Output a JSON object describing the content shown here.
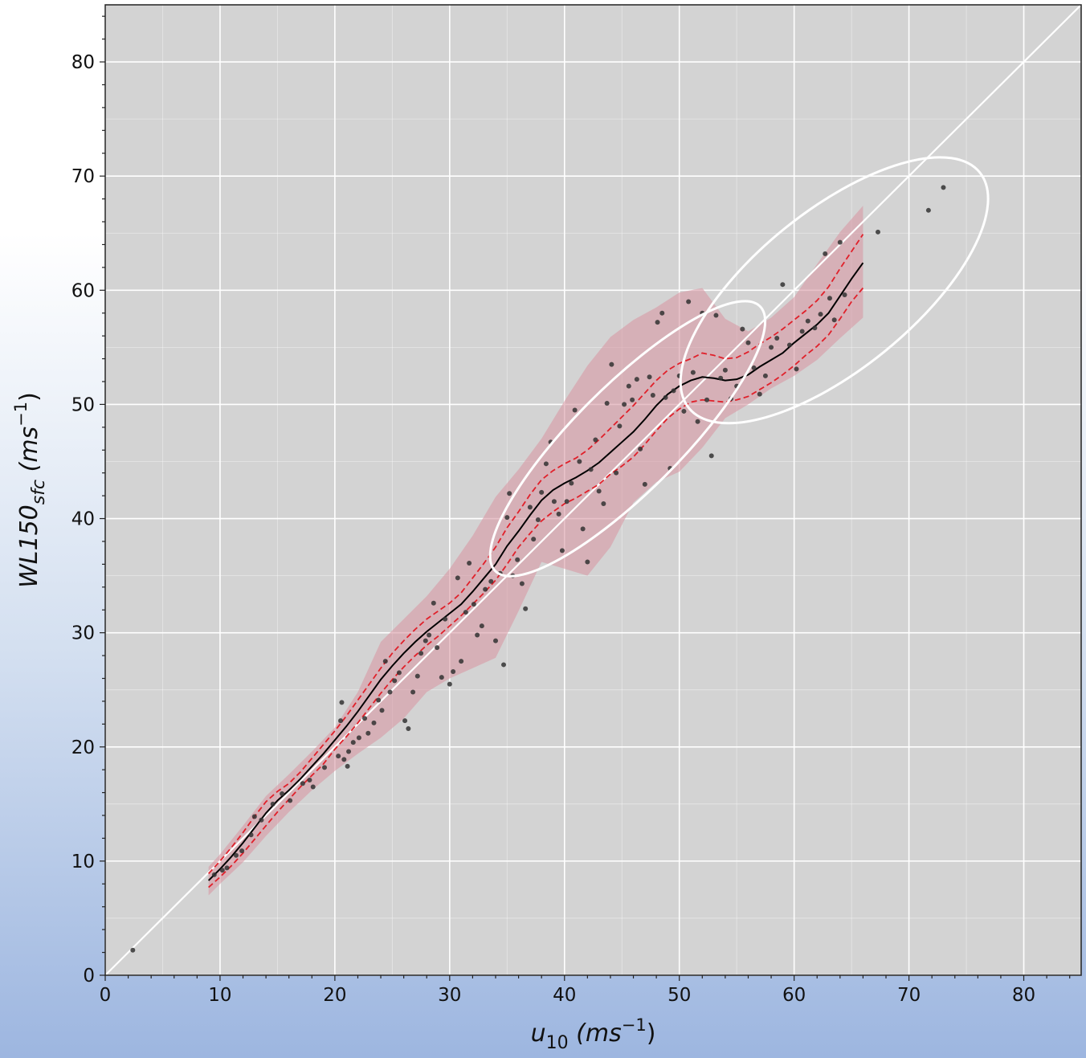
{
  "chart_data": {
    "type": "scatter",
    "title": "",
    "xlabel": {
      "base": "u",
      "sub": "10",
      "unit": "(ms",
      "sup": "−1",
      "close": ")"
    },
    "ylabel": {
      "base": "WL150",
      "sub": "sfc",
      "unit": "(ms",
      "sup": "−1",
      "close": ")"
    },
    "xlim": [
      0,
      85
    ],
    "ylim": [
      0,
      85
    ],
    "xticks": [
      0,
      10,
      20,
      30,
      40,
      50,
      60,
      70,
      80
    ],
    "yticks": [
      0,
      10,
      20,
      30,
      40,
      50,
      60,
      70,
      80
    ],
    "grid": true,
    "colors": {
      "axes_bg": "#d3d3d3",
      "grid": "#ffffff",
      "band": "#d89aa5",
      "ci_line": "#e0202a",
      "median_line": "#000000",
      "points": "#333333",
      "one_to_one": "#ffffff",
      "annotation": "#ffffff"
    },
    "one_to_one_line": [
      [
        0,
        0
      ],
      [
        85,
        85
      ]
    ],
    "series": [
      {
        "kind": "median",
        "x": [
          9,
          10,
          11,
          12,
          13,
          14,
          15,
          16,
          17,
          18,
          19,
          20,
          21,
          22,
          23,
          24,
          25,
          26,
          27,
          28,
          29,
          30,
          31,
          32,
          33,
          34,
          35,
          36,
          37,
          38,
          39,
          40,
          41,
          42,
          43,
          44,
          45,
          46,
          47,
          48,
          49,
          50,
          51,
          52,
          53,
          54,
          55,
          56,
          57,
          58,
          59,
          60,
          61,
          62,
          63,
          64,
          65,
          66
        ],
        "y": [
          8.3,
          9.3,
          10.4,
          11.6,
          12.9,
          14.2,
          15.3,
          16.2,
          17.2,
          18.3,
          19.4,
          20.6,
          21.8,
          23.1,
          24.5,
          25.9,
          27.1,
          28.2,
          29.2,
          30.1,
          30.9,
          31.7,
          32.5,
          33.6,
          34.8,
          36.0,
          37.6,
          38.9,
          40.3,
          41.6,
          42.5,
          43.1,
          43.6,
          44.2,
          44.9,
          45.8,
          46.7,
          47.6,
          48.7,
          49.9,
          50.9,
          51.6,
          52.1,
          52.4,
          52.3,
          52.1,
          52.2,
          52.6,
          53.3,
          53.9,
          54.5,
          55.4,
          56.2,
          57.0,
          58.0,
          59.5,
          61.0,
          62.4
        ]
      },
      {
        "kind": "ci_upper",
        "x": [
          9,
          10,
          11,
          12,
          13,
          14,
          15,
          16,
          17,
          18,
          19,
          20,
          21,
          22,
          23,
          24,
          25,
          26,
          27,
          28,
          29,
          30,
          31,
          32,
          33,
          34,
          35,
          36,
          37,
          38,
          39,
          40,
          41,
          42,
          43,
          44,
          45,
          46,
          47,
          48,
          49,
          50,
          51,
          52,
          53,
          54,
          55,
          56,
          57,
          58,
          59,
          60,
          61,
          62,
          63,
          64,
          65,
          66
        ],
        "y": [
          8.9,
          10.0,
          11.2,
          12.5,
          13.9,
          15.2,
          16.1,
          16.8,
          17.8,
          19.0,
          20.2,
          21.4,
          22.7,
          24.1,
          25.5,
          26.9,
          28.2,
          29.3,
          30.3,
          31.2,
          31.9,
          32.6,
          33.5,
          34.8,
          36.1,
          37.5,
          39.2,
          40.6,
          42.1,
          43.4,
          44.2,
          44.8,
          45.3,
          46.0,
          46.9,
          47.9,
          48.9,
          49.9,
          51.0,
          52.1,
          53.0,
          53.6,
          54.0,
          54.5,
          54.3,
          54.0,
          54.1,
          54.6,
          55.3,
          55.9,
          56.6,
          57.4,
          58.2,
          59.1,
          60.3,
          61.9,
          63.4,
          64.9
        ]
      },
      {
        "kind": "ci_lower",
        "x": [
          9,
          10,
          11,
          12,
          13,
          14,
          15,
          16,
          17,
          18,
          19,
          20,
          21,
          22,
          23,
          24,
          25,
          26,
          27,
          28,
          29,
          30,
          31,
          32,
          33,
          34,
          35,
          36,
          37,
          38,
          39,
          40,
          41,
          42,
          43,
          44,
          45,
          46,
          47,
          48,
          49,
          50,
          51,
          52,
          53,
          54,
          55,
          56,
          57,
          58,
          59,
          60,
          61,
          62,
          63,
          64,
          65,
          66
        ],
        "y": [
          7.7,
          8.6,
          9.6,
          10.7,
          11.9,
          13.1,
          14.3,
          15.4,
          16.5,
          17.5,
          18.5,
          19.8,
          20.9,
          22.1,
          23.4,
          24.7,
          25.9,
          27.0,
          28.0,
          28.9,
          29.7,
          30.6,
          31.5,
          32.5,
          33.5,
          34.6,
          36.0,
          37.5,
          38.7,
          39.8,
          40.6,
          41.3,
          41.8,
          42.4,
          43.0,
          43.9,
          44.6,
          45.4,
          46.5,
          47.7,
          48.8,
          49.6,
          50.2,
          50.4,
          50.3,
          50.2,
          50.4,
          50.7,
          51.3,
          51.9,
          52.6,
          53.4,
          54.3,
          55.1,
          56.1,
          57.5,
          59.0,
          60.2
        ]
      },
      {
        "kind": "band_upper",
        "x": [
          9,
          10,
          12,
          14,
          16,
          18,
          20,
          22,
          24,
          26,
          28,
          30,
          32,
          34,
          36,
          38,
          40,
          42,
          44,
          46,
          48,
          50,
          52,
          54,
          56,
          58,
          60,
          62,
          64,
          66
        ],
        "y": [
          9.5,
          10.6,
          13.1,
          15.7,
          17.6,
          19.6,
          21.7,
          24.8,
          29.2,
          31.2,
          33.2,
          35.6,
          38.5,
          41.9,
          44.3,
          47.0,
          50.3,
          53.4,
          55.9,
          57.4,
          58.5,
          59.8,
          60.2,
          57.5,
          56.4,
          57.6,
          59.4,
          62.3,
          65.1,
          67.4
        ]
      },
      {
        "kind": "band_lower",
        "x": [
          9,
          10,
          12,
          14,
          16,
          18,
          20,
          22,
          24,
          26,
          28,
          30,
          32,
          34,
          36,
          38,
          40,
          42,
          44,
          46,
          48,
          50,
          52,
          54,
          56,
          58,
          60,
          62,
          64,
          66
        ],
        "y": [
          7.0,
          8.0,
          9.9,
          12.2,
          14.3,
          16.2,
          17.9,
          19.4,
          20.8,
          22.5,
          24.8,
          26.0,
          26.9,
          27.8,
          31.9,
          36.2,
          35.6,
          35.0,
          37.5,
          41.4,
          43.2,
          44.1,
          46.2,
          48.8,
          50.0,
          51.4,
          52.5,
          53.9,
          55.8,
          57.6
        ]
      }
    ],
    "points": [
      [
        2.4,
        2.2
      ],
      [
        9.5,
        8.8
      ],
      [
        10.2,
        9.2
      ],
      [
        10.6,
        9.4
      ],
      [
        11.4,
        10.5
      ],
      [
        11.9,
        10.9
      ],
      [
        12.7,
        12.3
      ],
      [
        13.0,
        13.9
      ],
      [
        13.6,
        13.6
      ],
      [
        14.6,
        15.0
      ],
      [
        15.4,
        15.9
      ],
      [
        16.1,
        15.3
      ],
      [
        17.2,
        16.8
      ],
      [
        17.8,
        17.1
      ],
      [
        18.1,
        16.5
      ],
      [
        19.1,
        18.2
      ],
      [
        20.3,
        19.2
      ],
      [
        20.5,
        22.3
      ],
      [
        20.6,
        23.9
      ],
      [
        20.8,
        18.9
      ],
      [
        21.1,
        18.3
      ],
      [
        21.2,
        19.6
      ],
      [
        21.6,
        20.4
      ],
      [
        22.1,
        20.8
      ],
      [
        22.6,
        22.5
      ],
      [
        22.9,
        21.2
      ],
      [
        23.4,
        22.1
      ],
      [
        23.8,
        24.1
      ],
      [
        24.1,
        23.2
      ],
      [
        24.4,
        27.5
      ],
      [
        24.8,
        24.8
      ],
      [
        25.2,
        25.8
      ],
      [
        25.6,
        26.5
      ],
      [
        26.1,
        22.3
      ],
      [
        26.4,
        21.6
      ],
      [
        26.8,
        24.8
      ],
      [
        27.2,
        26.2
      ],
      [
        27.5,
        28.2
      ],
      [
        27.9,
        29.3
      ],
      [
        28.2,
        29.8
      ],
      [
        28.6,
        32.6
      ],
      [
        28.9,
        28.7
      ],
      [
        29.3,
        26.1
      ],
      [
        29.6,
        31.2
      ],
      [
        30.0,
        25.5
      ],
      [
        30.3,
        26.6
      ],
      [
        30.7,
        34.8
      ],
      [
        31.0,
        27.5
      ],
      [
        31.4,
        31.8
      ],
      [
        31.7,
        36.1
      ],
      [
        32.1,
        32.5
      ],
      [
        32.4,
        29.8
      ],
      [
        32.8,
        30.6
      ],
      [
        33.1,
        33.8
      ],
      [
        33.6,
        34.5
      ],
      [
        34.0,
        29.3
      ],
      [
        34.4,
        35.2
      ],
      [
        34.7,
        27.2
      ],
      [
        35.0,
        40.1
      ],
      [
        35.2,
        42.2
      ],
      [
        35.5,
        35.0
      ],
      [
        35.9,
        36.4
      ],
      [
        36.3,
        34.3
      ],
      [
        36.6,
        32.1
      ],
      [
        37.0,
        41.0
      ],
      [
        37.3,
        38.2
      ],
      [
        37.7,
        39.9
      ],
      [
        38.0,
        42.3
      ],
      [
        38.4,
        44.8
      ],
      [
        38.8,
        46.7
      ],
      [
        39.1,
        41.5
      ],
      [
        39.5,
        40.4
      ],
      [
        39.8,
        37.2
      ],
      [
        40.2,
        41.5
      ],
      [
        40.6,
        43.1
      ],
      [
        40.9,
        49.5
      ],
      [
        41.3,
        45.0
      ],
      [
        41.6,
        39.1
      ],
      [
        42.0,
        36.2
      ],
      [
        42.3,
        44.3
      ],
      [
        42.7,
        46.9
      ],
      [
        43.0,
        42.4
      ],
      [
        43.4,
        41.3
      ],
      [
        43.7,
        50.1
      ],
      [
        44.1,
        53.5
      ],
      [
        44.5,
        44.0
      ],
      [
        44.8,
        48.1
      ],
      [
        45.2,
        50.0
      ],
      [
        45.6,
        51.6
      ],
      [
        45.9,
        50.4
      ],
      [
        46.3,
        52.2
      ],
      [
        46.6,
        46.1
      ],
      [
        47.0,
        43.0
      ],
      [
        47.4,
        52.4
      ],
      [
        47.7,
        50.8
      ],
      [
        48.1,
        57.2
      ],
      [
        48.5,
        58.0
      ],
      [
        48.8,
        50.6
      ],
      [
        49.2,
        44.4
      ],
      [
        49.5,
        51.2
      ],
      [
        50.0,
        52.5
      ],
      [
        50.4,
        49.4
      ],
      [
        50.8,
        59.0
      ],
      [
        51.2,
        52.8
      ],
      [
        51.6,
        48.5
      ],
      [
        52.0,
        58.0
      ],
      [
        52.4,
        50.4
      ],
      [
        52.8,
        45.5
      ],
      [
        53.2,
        57.8
      ],
      [
        53.6,
        52.3
      ],
      [
        54.0,
        53.0
      ],
      [
        54.5,
        50.5
      ],
      [
        55.0,
        51.6
      ],
      [
        55.5,
        56.6
      ],
      [
        56.0,
        55.4
      ],
      [
        56.5,
        53.2
      ],
      [
        57.0,
        50.9
      ],
      [
        57.5,
        52.5
      ],
      [
        58.0,
        55.0
      ],
      [
        58.5,
        55.8
      ],
      [
        59.0,
        60.5
      ],
      [
        59.6,
        55.2
      ],
      [
        60.2,
        53.1
      ],
      [
        60.7,
        56.4
      ],
      [
        61.2,
        57.3
      ],
      [
        61.8,
        56.7
      ],
      [
        62.3,
        57.9
      ],
      [
        62.7,
        63.2
      ],
      [
        63.1,
        59.3
      ],
      [
        63.5,
        57.4
      ],
      [
        64.0,
        64.2
      ],
      [
        64.4,
        59.6
      ],
      [
        67.3,
        65.1
      ],
      [
        71.7,
        67.0
      ],
      [
        73.0,
        69.0
      ]
    ],
    "annotations": [
      {
        "shape": "ellipse",
        "cx": 45.5,
        "cy": 47.0,
        "rx": 16.3,
        "ry": 4.6,
        "angle_deg": 45
      },
      {
        "shape": "ellipse",
        "cx": 63.5,
        "cy": 60.0,
        "rx": 16.3,
        "ry": 6.9,
        "angle_deg": 39
      }
    ]
  }
}
